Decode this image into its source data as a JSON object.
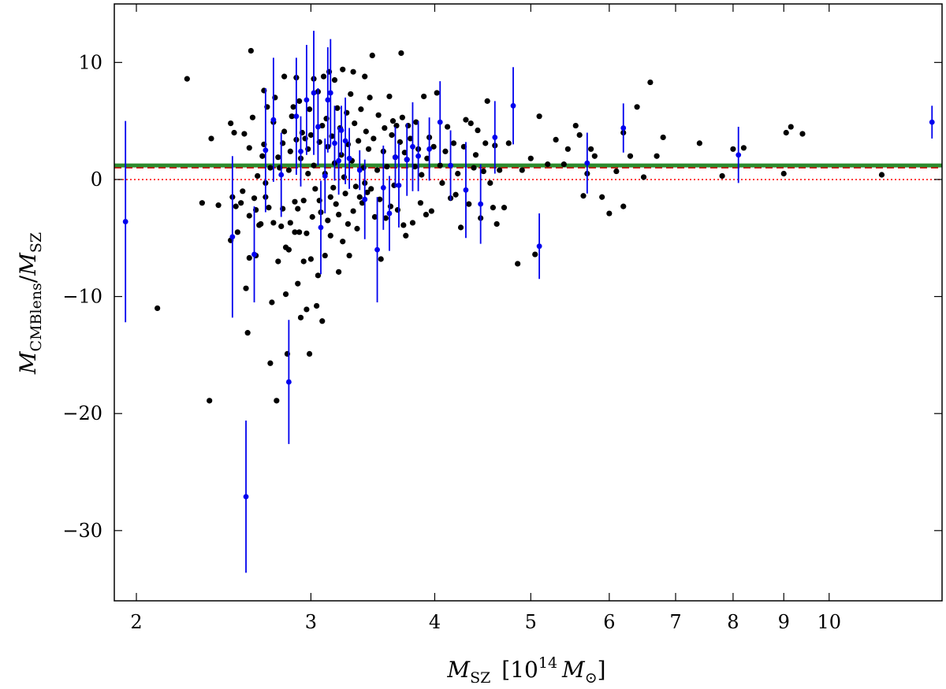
{
  "chart_data": {
    "type": "scatter",
    "xlabel": {
      "main": "M",
      "sub": "SZ",
      "bracket_open": "[10",
      "power": "14",
      "unit_main": "M",
      "unit_sub": "⊙",
      "bracket_close": "]"
    },
    "ylabel": {
      "num_main": "M",
      "num_sub": "CMBlens",
      "slash": "/",
      "den_main": "M",
      "den_sub": "SZ"
    },
    "x_scale": "log",
    "xlim": [
      1.9,
      13.0
    ],
    "ylim": [
      -36,
      15
    ],
    "x_ticks": [
      {
        "value": 2,
        "label": "2"
      },
      {
        "value": 3,
        "label": "3"
      },
      {
        "value": 4,
        "label": "4"
      },
      {
        "value": 5,
        "label": "5"
      },
      {
        "value": 6,
        "label": "6"
      },
      {
        "value": 7,
        "label": "7"
      },
      {
        "value": 8,
        "label": "8"
      },
      {
        "value": 9,
        "label": "9"
      },
      {
        "value": 10,
        "label": "10"
      }
    ],
    "y_ticks": [
      {
        "value": 10,
        "label": "10"
      },
      {
        "value": 0,
        "label": "0"
      },
      {
        "value": -10,
        "label": "−10"
      },
      {
        "value": -20,
        "label": "−20"
      },
      {
        "value": -30,
        "label": "−30"
      }
    ],
    "grid": false,
    "reference_lines": [
      {
        "y": 1.2,
        "color": "#2e8b2e",
        "style": "solid",
        "width": 5
      },
      {
        "y": 1.0,
        "color": "#cc0000",
        "style": "dashed",
        "width": 1.5
      },
      {
        "y": 0.0,
        "color": "#ff0000",
        "style": "dotted",
        "width": 1.5
      }
    ],
    "series": [
      {
        "color": "#000000",
        "points": [
          [
            2.25,
            8.6
          ],
          [
            2.1,
            -11.0
          ],
          [
            2.33,
            -2.0
          ],
          [
            2.37,
            -18.9
          ],
          [
            2.38,
            3.5
          ],
          [
            2.42,
            -2.2
          ],
          [
            2.49,
            4.8
          ],
          [
            2.49,
            -5.2
          ],
          [
            2.5,
            -1.5
          ],
          [
            2.51,
            4.0
          ],
          [
            2.52,
            -2.3
          ],
          [
            2.53,
            -4.5
          ],
          [
            2.55,
            -2.0
          ],
          [
            2.56,
            -1.0
          ],
          [
            2.57,
            3.9
          ],
          [
            2.58,
            -9.3
          ],
          [
            2.59,
            -13.1
          ],
          [
            2.6,
            -6.7
          ],
          [
            2.6,
            -3.1
          ],
          [
            2.6,
            2.7
          ],
          [
            2.61,
            11.0
          ],
          [
            2.62,
            5.3
          ],
          [
            2.63,
            -1.6
          ],
          [
            2.64,
            -6.5
          ],
          [
            2.64,
            -2.6
          ],
          [
            2.65,
            0.3
          ],
          [
            2.66,
            -3.9
          ],
          [
            2.67,
            -3.8
          ],
          [
            2.68,
            2.0
          ],
          [
            2.69,
            7.6
          ],
          [
            2.69,
            3.0
          ],
          [
            2.7,
            -1.5
          ],
          [
            2.7,
            -0.3
          ],
          [
            2.71,
            6.2
          ],
          [
            2.72,
            -2.4
          ],
          [
            2.73,
            -15.7
          ],
          [
            2.73,
            1.0
          ],
          [
            2.74,
            -10.5
          ],
          [
            2.75,
            -3.7
          ],
          [
            2.75,
            4.9
          ],
          [
            2.76,
            7.0
          ],
          [
            2.77,
            -18.9
          ],
          [
            2.78,
            -7.0
          ],
          [
            2.78,
            1.9
          ],
          [
            2.79,
            1.0
          ],
          [
            2.8,
            -4.0
          ],
          [
            2.81,
            3.1
          ],
          [
            2.81,
            -2.5
          ],
          [
            2.82,
            8.8
          ],
          [
            2.82,
            4.1
          ],
          [
            2.83,
            -5.8
          ],
          [
            2.83,
            -9.8
          ],
          [
            2.84,
            -14.9
          ],
          [
            2.85,
            -6.0
          ],
          [
            2.85,
            0.8
          ],
          [
            2.86,
            2.4
          ],
          [
            2.86,
            -3.7
          ],
          [
            2.87,
            5.4
          ],
          [
            2.88,
            6.2
          ],
          [
            2.89,
            -1.9
          ],
          [
            2.89,
            -4.5
          ],
          [
            2.9,
            8.7
          ],
          [
            2.9,
            3.4
          ],
          [
            2.91,
            -2.5
          ],
          [
            2.91,
            -8.9
          ],
          [
            2.92,
            6.7
          ],
          [
            2.92,
            -4.5
          ],
          [
            2.93,
            1.8
          ],
          [
            2.93,
            -11.8
          ],
          [
            2.94,
            4.0
          ],
          [
            2.95,
            -7.0
          ],
          [
            2.95,
            -1.8
          ],
          [
            2.96,
            3.5
          ],
          [
            2.97,
            -4.6
          ],
          [
            2.97,
            -11.1
          ],
          [
            2.98,
            0.5
          ],
          [
            2.98,
            2.6
          ],
          [
            2.99,
            -14.9
          ],
          [
            2.99,
            6.0
          ],
          [
            3.0,
            -6.8
          ],
          [
            3.0,
            3.8
          ],
          [
            3.01,
            -3.2
          ],
          [
            3.02,
            8.6
          ],
          [
            3.02,
            1.2
          ],
          [
            3.03,
            -0.8
          ],
          [
            3.04,
            -10.8
          ],
          [
            3.05,
            -8.2
          ],
          [
            3.05,
            7.5
          ],
          [
            3.06,
            3.2
          ],
          [
            3.06,
            -1.8
          ],
          [
            3.07,
            -2.8
          ],
          [
            3.08,
            4.6
          ],
          [
            3.08,
            -12.1
          ],
          [
            3.09,
            8.8
          ],
          [
            3.1,
            0.5
          ],
          [
            3.1,
            -6.5
          ],
          [
            3.11,
            5.2
          ],
          [
            3.12,
            -3.5
          ],
          [
            3.12,
            2.8
          ],
          [
            3.13,
            9.2
          ],
          [
            3.14,
            -1.5
          ],
          [
            3.14,
            -4.8
          ],
          [
            3.15,
            3.7
          ],
          [
            3.16,
            -0.7
          ],
          [
            3.17,
            8.5
          ],
          [
            3.17,
            1.4
          ],
          [
            3.18,
            -2.1
          ],
          [
            3.19,
            6.1
          ],
          [
            3.2,
            -7.9
          ],
          [
            3.2,
            -3.0
          ],
          [
            3.21,
            4.4
          ],
          [
            3.22,
            2.1
          ],
          [
            3.23,
            -5.3
          ],
          [
            3.23,
            9.4
          ],
          [
            3.24,
            0.2
          ],
          [
            3.25,
            -1.2
          ],
          [
            3.26,
            5.7
          ],
          [
            3.27,
            3.0
          ],
          [
            3.27,
            -3.8
          ],
          [
            3.28,
            -6.5
          ],
          [
            3.29,
            7.3
          ],
          [
            3.3,
            1.6
          ],
          [
            3.31,
            -2.7
          ],
          [
            3.31,
            9.2
          ],
          [
            3.32,
            4.8
          ],
          [
            3.33,
            -0.6
          ],
          [
            3.34,
            -4.2
          ],
          [
            3.35,
            3.3
          ],
          [
            3.36,
            -1.5
          ],
          [
            3.37,
            6.0
          ],
          [
            3.38,
            -2.0
          ],
          [
            3.39,
            1.0
          ],
          [
            3.4,
            8.8
          ],
          [
            3.4,
            -0.3
          ],
          [
            3.41,
            4.1
          ],
          [
            3.42,
            -1.1
          ],
          [
            3.43,
            2.6
          ],
          [
            3.44,
            7.0
          ],
          [
            3.45,
            -0.8
          ],
          [
            3.46,
            10.6
          ],
          [
            3.47,
            3.5
          ],
          [
            3.48,
            -3.2
          ],
          [
            3.5,
            0.8
          ],
          [
            3.51,
            5.5
          ],
          [
            3.52,
            -1.7
          ],
          [
            3.53,
            -6.8
          ],
          [
            3.55,
            2.4
          ],
          [
            3.56,
            4.4
          ],
          [
            3.57,
            -3.3
          ],
          [
            3.58,
            1.1
          ],
          [
            3.6,
            7.1
          ],
          [
            3.61,
            -2.3
          ],
          [
            3.62,
            3.8
          ],
          [
            3.63,
            5.0
          ],
          [
            3.64,
            -0.5
          ],
          [
            3.65,
            1.9
          ],
          [
            3.66,
            4.6
          ],
          [
            3.67,
            -2.6
          ],
          [
            3.69,
            3.2
          ],
          [
            3.7,
            10.8
          ],
          [
            3.71,
            5.3
          ],
          [
            3.72,
            -3.9
          ],
          [
            3.73,
            2.3
          ],
          [
            3.74,
            -4.8
          ],
          [
            3.75,
            1.7
          ],
          [
            3.76,
            4.6
          ],
          [
            3.78,
            3.5
          ],
          [
            3.8,
            -3.7
          ],
          [
            3.82,
            1.1
          ],
          [
            3.83,
            4.9
          ],
          [
            3.85,
            2.6
          ],
          [
            3.87,
            -2.0
          ],
          [
            3.88,
            0.4
          ],
          [
            3.9,
            7.1
          ],
          [
            3.92,
            -3.0
          ],
          [
            3.93,
            1.8
          ],
          [
            3.95,
            3.6
          ],
          [
            3.97,
            -2.7
          ],
          [
            3.99,
            2.8
          ],
          [
            4.02,
            7.4
          ],
          [
            4.05,
            1.2
          ],
          [
            4.07,
            -0.3
          ],
          [
            4.1,
            2.4
          ],
          [
            4.12,
            4.5
          ],
          [
            4.15,
            -1.6
          ],
          [
            4.18,
            3.1
          ],
          [
            4.2,
            -1.3
          ],
          [
            4.22,
            0.5
          ],
          [
            4.25,
            -4.1
          ],
          [
            4.28,
            2.8
          ],
          [
            4.3,
            5.1
          ],
          [
            4.33,
            -2.1
          ],
          [
            4.35,
            4.8
          ],
          [
            4.38,
            1.0
          ],
          [
            4.4,
            2.1
          ],
          [
            4.42,
            4.2
          ],
          [
            4.45,
            -3.3
          ],
          [
            4.48,
            0.7
          ],
          [
            4.5,
            3.1
          ],
          [
            4.52,
            6.7
          ],
          [
            4.55,
            -0.3
          ],
          [
            4.58,
            -2.4
          ],
          [
            4.6,
            2.9
          ],
          [
            4.62,
            -3.8
          ],
          [
            4.65,
            0.8
          ],
          [
            4.7,
            -2.4
          ],
          [
            4.75,
            3.1
          ],
          [
            4.85,
            -7.2
          ],
          [
            4.9,
            0.8
          ],
          [
            5.0,
            1.8
          ],
          [
            5.05,
            -6.4
          ],
          [
            5.1,
            5.4
          ],
          [
            5.2,
            1.3
          ],
          [
            5.3,
            3.4
          ],
          [
            5.4,
            1.3
          ],
          [
            5.45,
            2.6
          ],
          [
            5.55,
            4.6
          ],
          [
            5.6,
            3.8
          ],
          [
            5.65,
            -1.4
          ],
          [
            5.7,
            0.5
          ],
          [
            5.75,
            2.6
          ],
          [
            5.8,
            2.0
          ],
          [
            5.9,
            -1.5
          ],
          [
            6.0,
            -2.9
          ],
          [
            6.1,
            0.7
          ],
          [
            6.2,
            4.0
          ],
          [
            6.2,
            -2.3
          ],
          [
            6.3,
            2.0
          ],
          [
            6.4,
            6.2
          ],
          [
            6.5,
            0.2
          ],
          [
            6.6,
            8.3
          ],
          [
            6.7,
            2.0
          ],
          [
            6.8,
            3.6
          ],
          [
            7.4,
            3.1
          ],
          [
            7.8,
            0.3
          ],
          [
            8.0,
            2.6
          ],
          [
            8.2,
            2.7
          ],
          [
            9.0,
            0.5
          ],
          [
            9.05,
            4.0
          ],
          [
            9.15,
            4.5
          ],
          [
            9.4,
            3.9
          ],
          [
            11.3,
            0.4
          ]
        ]
      },
      {
        "color": "#0000ee",
        "error_bars": true,
        "points": [
          [
            1.95,
            -3.6,
            8.6
          ],
          [
            2.5,
            -4.9,
            6.9
          ],
          [
            2.63,
            -6.4,
            4.1
          ],
          [
            2.58,
            -27.1,
            6.5
          ],
          [
            2.7,
            2.5,
            5.3
          ],
          [
            2.75,
            5.1,
            5.3
          ],
          [
            2.8,
            0.4,
            3.6
          ],
          [
            2.85,
            -17.3,
            5.3
          ],
          [
            2.9,
            5.4,
            5.0
          ],
          [
            2.93,
            2.4,
            3.0
          ],
          [
            2.97,
            6.8,
            4.7
          ],
          [
            3.02,
            7.4,
            5.3
          ],
          [
            3.05,
            4.5,
            3.3
          ],
          [
            3.07,
            -4.1,
            4.0
          ],
          [
            3.1,
            0.3,
            3.2
          ],
          [
            3.12,
            6.8,
            4.5
          ],
          [
            3.14,
            7.4,
            4.6
          ],
          [
            3.17,
            3.1,
            3.2
          ],
          [
            3.2,
            1.6,
            2.9
          ],
          [
            3.22,
            4.2,
            2.1
          ],
          [
            3.25,
            3.3,
            3.7
          ],
          [
            3.28,
            1.8,
            2.6
          ],
          [
            3.36,
            0.8,
            1.7
          ],
          [
            3.4,
            -1.7,
            3.4
          ],
          [
            3.5,
            -6.0,
            4.5
          ],
          [
            3.55,
            -0.7,
            3.6
          ],
          [
            3.6,
            -2.9,
            3.2
          ],
          [
            3.65,
            1.9,
            2.6
          ],
          [
            3.68,
            -0.5,
            3.6
          ],
          [
            3.75,
            1.7,
            3.1
          ],
          [
            3.8,
            2.8,
            3.8
          ],
          [
            3.85,
            2.0,
            3.0
          ],
          [
            3.95,
            2.6,
            2.7
          ],
          [
            4.05,
            4.9,
            3.5
          ],
          [
            4.15,
            1.2,
            3.0
          ],
          [
            4.3,
            -0.9,
            4.1
          ],
          [
            4.45,
            -2.1,
            3.4
          ],
          [
            4.6,
            3.6,
            3.1
          ],
          [
            4.8,
            6.3,
            3.3
          ],
          [
            5.1,
            -5.7,
            2.8
          ],
          [
            5.7,
            1.4,
            2.6
          ],
          [
            6.2,
            4.4,
            2.1
          ],
          [
            8.1,
            2.1,
            2.4
          ],
          [
            12.7,
            4.9,
            1.4
          ]
        ]
      }
    ]
  }
}
